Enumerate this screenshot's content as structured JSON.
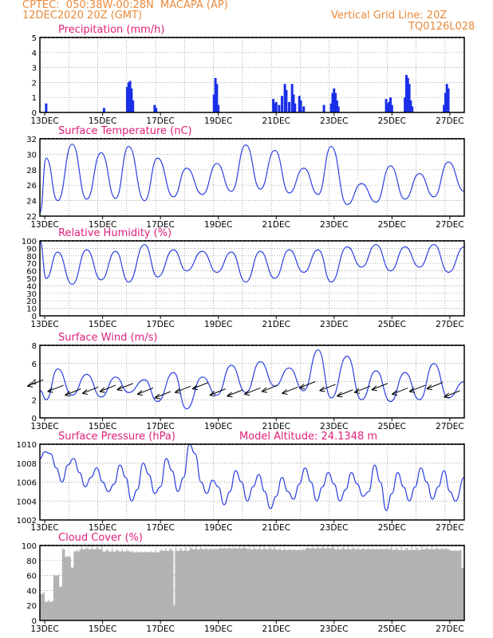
{
  "header": {
    "line1_left": "CPTEC:  050:38W-00:28N  MACAPA (AP)",
    "line2_left": "12DEC2020 20Z (GMT)",
    "line1_right": "Vertical Grid Line: 20Z",
    "line2_right": "TQ0126L028"
  },
  "colors": {
    "header": "#e8893a",
    "title": "#e0207a",
    "line": "#2a3fe0",
    "bar": "#1a2fe8",
    "cloud": "#b3b3b3",
    "arrow": "#000000"
  },
  "x_axis": {
    "start": "2020-12-12 20Z",
    "end": "2020-12-27 12Z",
    "tick_labels": [
      "13DEC",
      "15DEC",
      "17DEC",
      "19DEC",
      "21DEC",
      "23DEC",
      "25DEC",
      "27DEC"
    ],
    "grid": "vertical dotted lines daily at 20Z"
  },
  "chart_data": [
    {
      "type": "bar",
      "title": "Precipitation (mm/h)",
      "ylim": [
        0,
        5
      ],
      "yticks": [
        "0",
        "1",
        "2",
        "3",
        "4",
        "5"
      ],
      "events_day_value": [
        [
          13.05,
          0.6
        ],
        [
          15.05,
          0.3
        ],
        [
          15.85,
          1.7
        ],
        [
          15.9,
          2.0
        ],
        [
          15.95,
          2.1
        ],
        [
          16.0,
          1.6
        ],
        [
          16.05,
          0.8
        ],
        [
          16.8,
          0.5
        ],
        [
          16.85,
          0.3
        ],
        [
          18.85,
          1.2
        ],
        [
          18.9,
          2.3
        ],
        [
          18.95,
          1.9
        ],
        [
          19.0,
          0.5
        ],
        [
          20.9,
          0.9
        ],
        [
          20.95,
          0.6
        ],
        [
          21.0,
          0.7
        ],
        [
          21.1,
          0.5
        ],
        [
          21.2,
          1.1
        ],
        [
          21.3,
          1.9
        ],
        [
          21.35,
          1.5
        ],
        [
          21.45,
          0.7
        ],
        [
          21.55,
          1.9
        ],
        [
          21.6,
          1.2
        ],
        [
          21.65,
          0.6
        ],
        [
          21.8,
          1.1
        ],
        [
          21.85,
          0.8
        ],
        [
          21.95,
          0.4
        ],
        [
          22.65,
          0.5
        ],
        [
          22.9,
          0.6
        ],
        [
          22.95,
          1.3
        ],
        [
          23.0,
          1.6
        ],
        [
          23.05,
          1.3
        ],
        [
          23.1,
          0.8
        ],
        [
          23.15,
          0.4
        ],
        [
          24.8,
          0.9
        ],
        [
          24.85,
          0.6
        ],
        [
          24.9,
          0.7
        ],
        [
          24.95,
          1.0
        ],
        [
          25.0,
          0.5
        ],
        [
          25.45,
          1.0
        ],
        [
          25.5,
          2.5
        ],
        [
          25.55,
          2.3
        ],
        [
          25.6,
          1.9
        ],
        [
          25.65,
          0.8
        ],
        [
          25.7,
          0.4
        ],
        [
          26.8,
          0.5
        ],
        [
          26.85,
          1.3
        ],
        [
          26.9,
          1.9
        ],
        [
          26.95,
          1.6
        ]
      ]
    },
    {
      "type": "line",
      "title": "Surface Temperature (nC)",
      "ylim": [
        22,
        32
      ],
      "yticks": [
        "22",
        "24",
        "26",
        "28",
        "30",
        "32"
      ],
      "daily": [
        [
          12.84,
          22.5
        ],
        [
          13.05,
          29.5
        ],
        [
          13.45,
          24.0
        ],
        [
          13.95,
          31.3
        ],
        [
          14.45,
          24.2
        ],
        [
          14.95,
          30.2
        ],
        [
          15.45,
          24.3
        ],
        [
          15.9,
          31.0
        ],
        [
          16.45,
          24.0
        ],
        [
          16.9,
          29.5
        ],
        [
          17.45,
          24.5
        ],
        [
          17.9,
          28.2
        ],
        [
          18.45,
          24.8
        ],
        [
          18.95,
          28.8
        ],
        [
          19.45,
          25.2
        ],
        [
          19.95,
          31.2
        ],
        [
          20.45,
          25.5
        ],
        [
          20.95,
          30.5
        ],
        [
          21.45,
          25.0
        ],
        [
          21.95,
          28.2
        ],
        [
          22.45,
          24.8
        ],
        [
          22.9,
          31.0
        ],
        [
          23.45,
          23.5
        ],
        [
          23.95,
          26.2
        ],
        [
          24.45,
          23.8
        ],
        [
          24.95,
          28.5
        ],
        [
          25.45,
          24.2
        ],
        [
          25.95,
          27.5
        ],
        [
          26.45,
          24.5
        ],
        [
          26.95,
          29.0
        ],
        [
          27.5,
          25.2
        ]
      ]
    },
    {
      "type": "line",
      "title": "Relative Humidity (%)",
      "ylim": [
        0,
        100
      ],
      "yticks": [
        "0",
        "10",
        "20",
        "30",
        "40",
        "50",
        "60",
        "70",
        "80",
        "90",
        "100"
      ],
      "daily": [
        [
          12.84,
          100
        ],
        [
          13.05,
          50
        ],
        [
          13.45,
          85
        ],
        [
          13.95,
          42
        ],
        [
          14.45,
          88
        ],
        [
          14.95,
          48
        ],
        [
          15.45,
          86
        ],
        [
          15.9,
          45
        ],
        [
          16.45,
          95
        ],
        [
          16.9,
          52
        ],
        [
          17.45,
          88
        ],
        [
          17.9,
          60
        ],
        [
          18.45,
          86
        ],
        [
          18.95,
          58
        ],
        [
          19.45,
          85
        ],
        [
          19.95,
          45
        ],
        [
          20.45,
          86
        ],
        [
          20.95,
          50
        ],
        [
          21.45,
          88
        ],
        [
          21.95,
          58
        ],
        [
          22.45,
          88
        ],
        [
          22.9,
          45
        ],
        [
          23.45,
          92
        ],
        [
          23.95,
          65
        ],
        [
          24.45,
          95
        ],
        [
          24.95,
          60
        ],
        [
          25.45,
          92
        ],
        [
          25.95,
          65
        ],
        [
          26.45,
          95
        ],
        [
          26.95,
          58
        ],
        [
          27.5,
          92
        ]
      ]
    },
    {
      "type": "line",
      "title": "Surface Wind (m/s)",
      "ylim": [
        0,
        8
      ],
      "yticks": [
        "0",
        "2",
        "4",
        "6",
        "8"
      ],
      "daily": [
        [
          12.84,
          3.0
        ],
        [
          13.05,
          2.0
        ],
        [
          13.45,
          5.4
        ],
        [
          13.95,
          2.5
        ],
        [
          14.45,
          4.8
        ],
        [
          14.95,
          2.3
        ],
        [
          15.45,
          4.5
        ],
        [
          15.9,
          2.8
        ],
        [
          16.45,
          4.2
        ],
        [
          16.9,
          1.8
        ],
        [
          17.45,
          5.0
        ],
        [
          17.9,
          1.0
        ],
        [
          18.45,
          4.5
        ],
        [
          18.95,
          2.5
        ],
        [
          19.45,
          5.8
        ],
        [
          19.95,
          2.8
        ],
        [
          20.45,
          6.2
        ],
        [
          20.95,
          3.5
        ],
        [
          21.45,
          5.5
        ],
        [
          21.95,
          3.0
        ],
        [
          22.45,
          7.5
        ],
        [
          22.9,
          2.2
        ],
        [
          23.45,
          6.8
        ],
        [
          23.95,
          2.0
        ],
        [
          24.45,
          5.2
        ],
        [
          24.95,
          1.8
        ],
        [
          25.45,
          5.0
        ],
        [
          25.95,
          2.0
        ],
        [
          26.45,
          6.0
        ],
        [
          26.95,
          2.2
        ],
        [
          27.5,
          4.0
        ]
      ],
      "wind_arrows": [
        [
          12.95,
          4.2
        ],
        [
          13.65,
          3.6
        ],
        [
          14.25,
          3.2
        ],
        [
          14.85,
          3.4
        ],
        [
          15.45,
          3.6
        ],
        [
          16.05,
          3.8
        ],
        [
          16.75,
          3.3
        ],
        [
          17.35,
          2.9
        ],
        [
          18.05,
          3.5
        ],
        [
          18.65,
          3.9
        ],
        [
          19.25,
          3.2
        ],
        [
          19.85,
          3.1
        ],
        [
          20.45,
          3.3
        ],
        [
          21.05,
          3.6
        ],
        [
          21.75,
          3.4
        ],
        [
          22.35,
          4.0
        ],
        [
          23.05,
          3.7
        ],
        [
          23.65,
          3.1
        ],
        [
          24.25,
          3.5
        ],
        [
          24.85,
          3.8
        ],
        [
          25.55,
          3.3
        ],
        [
          26.15,
          3.6
        ],
        [
          26.75,
          3.9
        ],
        [
          27.35,
          3.0
        ]
      ]
    },
    {
      "type": "line",
      "title": "Surface Pressure (hPa)",
      "subtitle": "Model Altitude: 24.1348 m",
      "ylim": [
        1002,
        1010
      ],
      "yticks": [
        "1002",
        "1004",
        "1006",
        "1008",
        "1010"
      ],
      "hourly_points": [
        [
          12.84,
          1008.5
        ],
        [
          13.0,
          1009.2
        ],
        [
          13.2,
          1009.0
        ],
        [
          13.4,
          1007.5
        ],
        [
          13.6,
          1006.0
        ],
        [
          13.8,
          1007.8
        ],
        [
          14.0,
          1008.5
        ],
        [
          14.2,
          1007.0
        ],
        [
          14.4,
          1005.5
        ],
        [
          14.6,
          1006.5
        ],
        [
          14.8,
          1007.5
        ],
        [
          15.0,
          1006.0
        ],
        [
          15.2,
          1005.0
        ],
        [
          15.4,
          1005.8
        ],
        [
          15.6,
          1007.8
        ],
        [
          15.8,
          1006.5
        ],
        [
          16.0,
          1004.0
        ],
        [
          16.2,
          1005.2
        ],
        [
          16.4,
          1008.0
        ],
        [
          16.6,
          1006.8
        ],
        [
          16.8,
          1004.8
        ],
        [
          17.0,
          1005.5
        ],
        [
          17.2,
          1008.5
        ],
        [
          17.4,
          1007.2
        ],
        [
          17.6,
          1005.0
        ],
        [
          17.8,
          1006.5
        ],
        [
          18.0,
          1010.0
        ],
        [
          18.2,
          1009.0
        ],
        [
          18.4,
          1006.0
        ],
        [
          18.6,
          1004.8
        ],
        [
          18.8,
          1006.2
        ],
        [
          19.0,
          1005.5
        ],
        [
          19.2,
          1003.6
        ],
        [
          19.4,
          1005.0
        ],
        [
          19.6,
          1007.2
        ],
        [
          19.8,
          1006.0
        ],
        [
          20.0,
          1004.0
        ],
        [
          20.2,
          1005.5
        ],
        [
          20.4,
          1006.8
        ],
        [
          20.6,
          1005.0
        ],
        [
          20.8,
          1003.2
        ],
        [
          21.0,
          1004.5
        ],
        [
          21.2,
          1006.5
        ],
        [
          21.4,
          1005.0
        ],
        [
          21.6,
          1004.2
        ],
        [
          21.8,
          1005.8
        ],
        [
          22.0,
          1007.5
        ],
        [
          22.2,
          1006.0
        ],
        [
          22.4,
          1004.0
        ],
        [
          22.6,
          1005.5
        ],
        [
          22.8,
          1007.0
        ],
        [
          23.0,
          1005.8
        ],
        [
          23.2,
          1004.0
        ],
        [
          23.4,
          1005.2
        ],
        [
          23.6,
          1007.0
        ],
        [
          23.8,
          1005.8
        ],
        [
          24.0,
          1004.5
        ],
        [
          24.2,
          1005.0
        ],
        [
          24.4,
          1007.8
        ],
        [
          24.6,
          1006.0
        ],
        [
          24.8,
          1003.0
        ],
        [
          25.0,
          1004.8
        ],
        [
          25.2,
          1007.0
        ],
        [
          25.4,
          1005.5
        ],
        [
          25.6,
          1004.0
        ],
        [
          25.8,
          1005.5
        ],
        [
          26.0,
          1007.5
        ],
        [
          26.2,
          1006.0
        ],
        [
          26.4,
          1004.2
        ],
        [
          26.6,
          1005.5
        ],
        [
          26.8,
          1007.2
        ],
        [
          27.0,
          1005.0
        ],
        [
          27.2,
          1004.0
        ],
        [
          27.5,
          1006.5
        ]
      ]
    },
    {
      "type": "bar",
      "title": "Cloud Cover (%)",
      "ylim": [
        0,
        100
      ],
      "yticks": [
        "0",
        "20",
        "40",
        "60",
        "80",
        "100"
      ],
      "segments_day_value": [
        [
          12.84,
          35
        ],
        [
          13.0,
          25
        ],
        [
          13.3,
          60
        ],
        [
          13.5,
          45
        ],
        [
          13.6,
          95
        ],
        [
          13.7,
          85
        ],
        [
          13.9,
          70
        ],
        [
          14.0,
          92
        ],
        [
          14.2,
          95
        ],
        [
          15.0,
          92
        ],
        [
          16.0,
          91
        ],
        [
          17.0,
          93
        ],
        [
          17.45,
          20
        ],
        [
          17.5,
          93
        ],
        [
          18.0,
          95
        ],
        [
          19.0,
          96
        ],
        [
          20.0,
          95
        ],
        [
          21.0,
          94
        ],
        [
          22.0,
          96
        ],
        [
          23.0,
          95
        ],
        [
          24.0,
          95
        ],
        [
          25.0,
          94
        ],
        [
          26.0,
          95
        ],
        [
          27.0,
          93
        ],
        [
          27.4,
          70
        ]
      ]
    }
  ]
}
